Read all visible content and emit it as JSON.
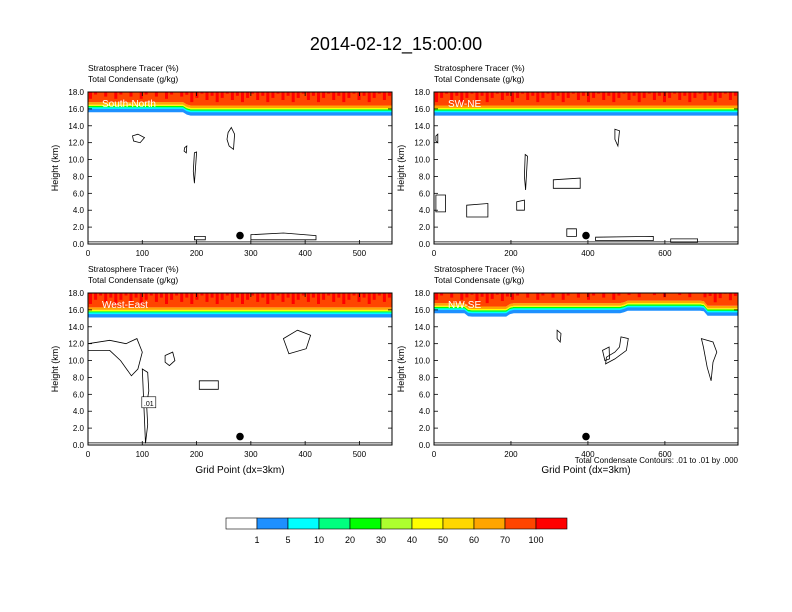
{
  "figure": {
    "title": "2014-02-12_15:00:00",
    "footnote": "Total Condensate Contours: .01 to .01 by .000"
  },
  "colors": {
    "bins": [
      "#ffffff",
      "#1e90ff",
      "#00ffff",
      "#00ff7f",
      "#00ff00",
      "#adff2f",
      "#ffff00",
      "#ffd700",
      "#ffa500",
      "#ff4500",
      "#ff0000"
    ],
    "contour": "#000000",
    "marker": "#000000"
  },
  "colorbar": {
    "labels": [
      "1",
      "5",
      "10",
      "20",
      "30",
      "40",
      "50",
      "60",
      "70",
      "100"
    ]
  },
  "chart_data": [
    {
      "type": "heatmap",
      "panel": "South-North",
      "subtitle_left": "Stratosphere Tracer   (%)",
      "subtitle_left2": "Total Condensate   (g/kg)",
      "ylabel": "Height (km)",
      "xlabel": "",
      "xlim": [
        0,
        560
      ],
      "ylim": [
        0,
        18
      ],
      "xticks": [
        0,
        100,
        200,
        300,
        400,
        500
      ],
      "yticks": [
        "0.0",
        "2.0",
        "4.0",
        "6.0",
        "8.0",
        "10.0",
        "12.0",
        "14.0",
        "16.0",
        "18.0"
      ],
      "tracer_base_km": [
        [
          0,
          16.3
        ],
        [
          175,
          16.3
        ],
        [
          185,
          15.9
        ],
        [
          560,
          15.9
        ]
      ],
      "marker": {
        "x": 280,
        "z": 1.0
      },
      "contours": [
        [
          [
            82,
            12.8
          ],
          [
            92,
            13.0
          ],
          [
            104,
            12.6
          ],
          [
            96,
            12.0
          ],
          [
            84,
            12.2
          ]
        ],
        [
          [
            178,
            11.4
          ],
          [
            182,
            11.6
          ],
          [
            181,
            10.8
          ],
          [
            177,
            11.0
          ]
        ],
        [
          [
            196,
            10.8
          ],
          [
            200,
            10.9
          ],
          [
            198,
            9.0
          ],
          [
            196,
            7.2
          ],
          [
            194,
            8.6
          ]
        ],
        [
          [
            258,
            13.2
          ],
          [
            264,
            13.8
          ],
          [
            270,
            13.0
          ],
          [
            268,
            11.2
          ],
          [
            260,
            11.6
          ],
          [
            256,
            12.4
          ]
        ],
        [
          [
            196,
            0.9
          ],
          [
            216,
            0.9
          ],
          [
            216,
            0.5
          ],
          [
            196,
            0.5
          ]
        ],
        [
          [
            300,
            1.1
          ],
          [
            360,
            1.3
          ],
          [
            420,
            1.0
          ],
          [
            420,
            0.5
          ],
          [
            300,
            0.5
          ]
        ]
      ]
    },
    {
      "type": "heatmap",
      "panel": "SW-NE",
      "subtitle_left": "Stratosphere Tracer   (%)",
      "subtitle_left2": "Total Condensate   (g/kg)",
      "ylabel": "Height (km)",
      "xlabel": "",
      "xlim": [
        0,
        790
      ],
      "ylim": [
        0,
        18
      ],
      "xticks": [
        0,
        200,
        400,
        600
      ],
      "yticks": [
        "0.0",
        "2.0",
        "4.0",
        "6.0",
        "8.0",
        "10.0",
        "12.0",
        "14.0",
        "16.0",
        "18.0"
      ],
      "tracer_base_km": [
        [
          0,
          15.9
        ],
        [
          790,
          15.9
        ]
      ],
      "marker": {
        "x": 395,
        "z": 1.0
      },
      "contours": [
        [
          [
            5,
            12.8
          ],
          [
            10,
            13.0
          ],
          [
            10,
            12.0
          ],
          [
            5,
            12.2
          ]
        ],
        [
          [
            5,
            5.8
          ],
          [
            30,
            5.8
          ],
          [
            30,
            3.8
          ],
          [
            5,
            3.8
          ]
        ],
        [
          [
            85,
            4.6
          ],
          [
            140,
            4.8
          ],
          [
            140,
            3.2
          ],
          [
            85,
            3.2
          ]
        ],
        [
          [
            215,
            5.0
          ],
          [
            235,
            5.2
          ],
          [
            235,
            4.0
          ],
          [
            215,
            4.0
          ]
        ],
        [
          [
            237,
            10.6
          ],
          [
            243,
            10.4
          ],
          [
            238,
            6.4
          ],
          [
            235,
            8.0
          ]
        ],
        [
          [
            310,
            7.6
          ],
          [
            380,
            7.8
          ],
          [
            380,
            6.6
          ],
          [
            310,
            6.6
          ]
        ],
        [
          [
            345,
            1.8
          ],
          [
            370,
            1.8
          ],
          [
            370,
            0.9
          ],
          [
            345,
            0.9
          ]
        ],
        [
          [
            470,
            13.6
          ],
          [
            482,
            13.4
          ],
          [
            478,
            11.6
          ],
          [
            470,
            12.4
          ]
        ],
        [
          [
            420,
            0.8
          ],
          [
            570,
            0.9
          ],
          [
            570,
            0.4
          ],
          [
            420,
            0.4
          ]
        ],
        [
          [
            615,
            0.6
          ],
          [
            685,
            0.6
          ],
          [
            685,
            0.2
          ],
          [
            615,
            0.2
          ]
        ]
      ]
    },
    {
      "type": "heatmap",
      "panel": "West-East",
      "subtitle_left": "Stratosphere Tracer   (%)",
      "subtitle_left2": "Total Condensate   (g/kg)",
      "ylabel": "Height (km)",
      "xlabel": "Grid Point (dx=3km)",
      "xlim": [
        0,
        560
      ],
      "ylim": [
        0,
        18
      ],
      "xticks": [
        0,
        100,
        200,
        300,
        400,
        500
      ],
      "yticks": [
        "0.0",
        "2.0",
        "4.0",
        "6.0",
        "8.0",
        "10.0",
        "12.0",
        "14.0",
        "16.0",
        "18.0"
      ],
      "tracer_base_km": [
        [
          0,
          15.8
        ],
        [
          560,
          15.8
        ]
      ],
      "marker": {
        "x": 280,
        "z": 1.0
      },
      "contour_label": ".01",
      "contour_label_pos": {
        "x": 112,
        "z": 5.0
      },
      "contours": [
        [
          [
            0,
            12.0
          ],
          [
            40,
            12.4
          ],
          [
            70,
            12.0
          ],
          [
            90,
            12.6
          ],
          [
            100,
            11.0
          ],
          [
            92,
            9.0
          ],
          [
            80,
            8.2
          ],
          [
            60,
            10.0
          ],
          [
            40,
            11.2
          ],
          [
            0,
            11.2
          ]
        ],
        [
          [
            100,
            9.0
          ],
          [
            110,
            8.6
          ],
          [
            112,
            6.4
          ],
          [
            108,
            4.8
          ],
          [
            110,
            2.4
          ],
          [
            106,
            0.2
          ]
        ],
        [
          [
            142,
            10.6
          ],
          [
            156,
            11.0
          ],
          [
            160,
            10.0
          ],
          [
            150,
            9.4
          ],
          [
            142,
            9.8
          ]
        ],
        [
          [
            205,
            7.6
          ],
          [
            240,
            7.6
          ],
          [
            240,
            6.6
          ],
          [
            205,
            6.6
          ]
        ],
        [
          [
            360,
            12.6
          ],
          [
            386,
            13.6
          ],
          [
            410,
            13.0
          ],
          [
            402,
            11.4
          ],
          [
            370,
            10.8
          ]
        ]
      ]
    },
    {
      "type": "heatmap",
      "panel": "NW-SE",
      "subtitle_left": "Stratosphere Tracer   (%)",
      "subtitle_left2": "Total Condensate   (g/kg)",
      "ylabel": "Height (km)",
      "xlabel": "Grid Point (dx=3km)",
      "xlim": [
        0,
        790
      ],
      "ylim": [
        0,
        18
      ],
      "xticks": [
        0,
        200,
        400,
        600
      ],
      "yticks": [
        "0.0",
        "2.0",
        "4.0",
        "6.0",
        "8.0",
        "10.0",
        "12.0",
        "14.0",
        "16.0",
        "18.0"
      ],
      "tracer_base_km": [
        [
          0,
          16.3
        ],
        [
          80,
          16.3
        ],
        [
          90,
          15.9
        ],
        [
          190,
          15.9
        ],
        [
          200,
          16.3
        ],
        [
          490,
          16.3
        ],
        [
          500,
          16.6
        ],
        [
          700,
          16.6
        ],
        [
          710,
          16.0
        ],
        [
          790,
          16.0
        ]
      ],
      "marker": {
        "x": 395,
        "z": 1.0
      },
      "contours": [
        [
          [
            320,
            13.6
          ],
          [
            330,
            13.2
          ],
          [
            328,
            12.2
          ],
          [
            320,
            12.6
          ]
        ],
        [
          [
            438,
            11.2
          ],
          [
            455,
            11.6
          ],
          [
            456,
            10.2
          ],
          [
            444,
            10.0
          ]
        ],
        [
          [
            486,
            12.8
          ],
          [
            505,
            12.6
          ],
          [
            500,
            11.2
          ],
          [
            470,
            10.2
          ],
          [
            446,
            9.6
          ],
          [
            448,
            10.4
          ],
          [
            470,
            11.0
          ],
          [
            482,
            11.6
          ]
        ],
        [
          [
            695,
            12.6
          ],
          [
            725,
            12.2
          ],
          [
            735,
            11.0
          ],
          [
            725,
            9.8
          ],
          [
            720,
            7.6
          ],
          [
            710,
            9.2
          ],
          [
            700,
            11.6
          ]
        ]
      ]
    }
  ]
}
